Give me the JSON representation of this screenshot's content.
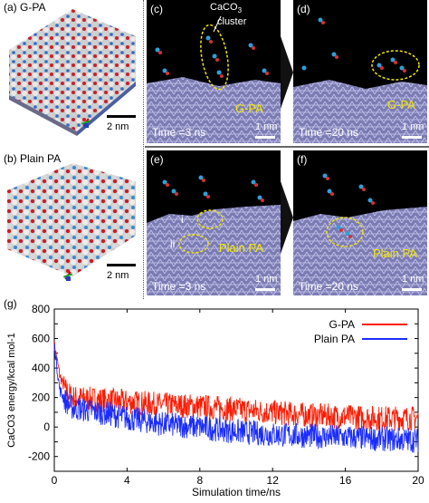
{
  "panels": {
    "a": {
      "label": "(a) G-PA",
      "scale": "2 nm"
    },
    "b": {
      "label": "(b) Plain PA",
      "scale": "2 nm"
    },
    "c": {
      "label": "(c)",
      "cluster_label": "CaCO",
      "cluster_sub": "3",
      "cluster_label2": "cluster",
      "material": "G-PA",
      "time": "Time =3 ns",
      "scale": "1 nm"
    },
    "d": {
      "label": "(d)",
      "material": "G-PA",
      "time": "Time =20 ns",
      "scale": "1 nm"
    },
    "e": {
      "label": "(e)",
      "marker_i": "i",
      "marker_ii": "ii",
      "material": "Plain PA",
      "time": "Time =3 ns",
      "scale": "1 nm"
    },
    "f": {
      "label": "(f)",
      "material": "Plain PA",
      "time": "Time =20 ns",
      "scale": "1 nm"
    },
    "g": {
      "label": "(g)"
    }
  },
  "colors": {
    "gpa_series": "#ff1a00",
    "plain_series": "#1a2cff",
    "material_label": "#f2e600",
    "highlight_ellipse": "#f2e600"
  },
  "chart_data": {
    "type": "line",
    "xlabel": "Simulation time/ns",
    "ylabel": "CaCO3 energy/kcal mol-1",
    "xlim": [
      0,
      20
    ],
    "ylim": [
      -300,
      800
    ],
    "xticks": [
      0,
      4,
      8,
      12,
      16,
      20
    ],
    "yticks": [
      -200,
      -100,
      0,
      100,
      200,
      300,
      400,
      500,
      600,
      700,
      800
    ],
    "legend": "top-right",
    "series": [
      {
        "name": "G-PA",
        "color": "#ff1a00",
        "x": [
          0,
          0.3,
          0.6,
          1,
          2,
          3,
          4,
          6,
          8,
          10,
          12,
          14,
          16,
          18,
          20
        ],
        "y": [
          560,
          350,
          250,
          200,
          190,
          180,
          170,
          150,
          140,
          120,
          100,
          80,
          70,
          60,
          60
        ]
      },
      {
        "name": "Plain PA",
        "color": "#1a2cff",
        "x": [
          0,
          0.3,
          0.6,
          1,
          2,
          3,
          4,
          6,
          8,
          10,
          12,
          14,
          16,
          18,
          20
        ],
        "y": [
          560,
          250,
          180,
          130,
          110,
          90,
          60,
          20,
          0,
          -30,
          -50,
          -60,
          -70,
          -80,
          -90
        ]
      }
    ]
  }
}
